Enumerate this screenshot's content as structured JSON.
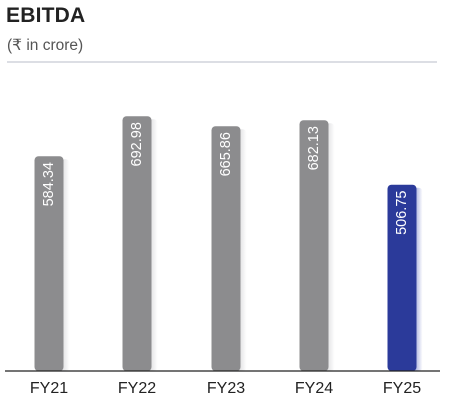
{
  "chart_data": {
    "type": "bar",
    "title": "EBITDA",
    "subtitle": "(₹ in crore)",
    "categories": [
      "FY21",
      "FY22",
      "FY23",
      "FY24",
      "FY25"
    ],
    "values": [
      584.34,
      692.98,
      665.86,
      682.13,
      506.75
    ],
    "value_labels": [
      "584.34",
      "692.98",
      "665.86",
      "682.13",
      "506.75"
    ],
    "highlight_index": 4,
    "ylim": [
      0,
      720
    ],
    "grid": false,
    "legend": "none",
    "colors": {
      "bar": "#8c8c8e",
      "bar_highlight": "#2b3a9a",
      "shadow": "#c3c3c6",
      "shadow_highlight": "#5a68c0",
      "label": "#ffffff",
      "axis_text": "#222222",
      "rule": "#b8bcc8"
    }
  }
}
